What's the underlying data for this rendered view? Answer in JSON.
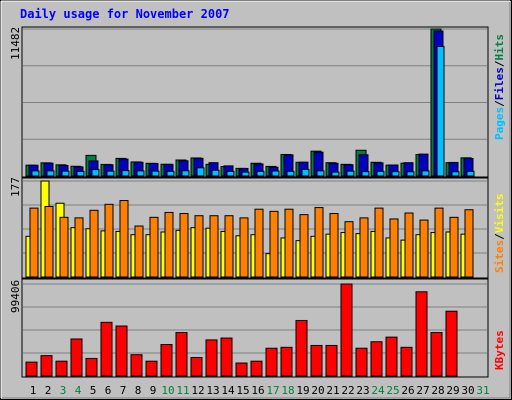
{
  "chart_data": [
    {
      "type": "bar",
      "panel": "top",
      "title": "Daily usage for November 2007",
      "categories": [
        "1",
        "2",
        "3",
        "4",
        "5",
        "6",
        "7",
        "8",
        "9",
        "10",
        "11",
        "12",
        "13",
        "14",
        "15",
        "16",
        "17",
        "18",
        "19",
        "20",
        "21",
        "22",
        "23",
        "24",
        "25",
        "26",
        "27",
        "28",
        "29",
        "30",
        "31"
      ],
      "weekend_days": [
        "3",
        "4",
        "10",
        "11",
        "17",
        "18",
        "24",
        "25",
        "31"
      ],
      "ylabel_parts": [
        "Pages",
        "/",
        "Files",
        "/",
        "Hits"
      ],
      "ylabel_colors": [
        "#00c0ff",
        "#000000",
        "#0000c0",
        "#000000",
        "#008040"
      ],
      "y_max_label": "11482",
      "ylim": [
        0,
        11482
      ],
      "series": [
        {
          "name": "Hits",
          "color": "#008040",
          "values": [
            845,
            1030,
            875,
            760,
            1610,
            905,
            1375,
            1100,
            990,
            915,
            1250,
            1410,
            910,
            740,
            595,
            995,
            750,
            1680,
            1070,
            1940,
            1040,
            910,
            2010,
            1070,
            850,
            1000,
            1680,
            11482,
            1040,
            1420,
            null
          ]
        },
        {
          "name": "Files",
          "color": "#0000c0",
          "values": [
            840,
            1000,
            820,
            710,
            1180,
            880,
            1320,
            1070,
            980,
            910,
            1190,
            1380,
            1040,
            790,
            590,
            940,
            680,
            1650,
            1080,
            1860,
            990,
            880,
            1660,
            1030,
            860,
            1040,
            1710,
            11325,
            1060,
            1370,
            null
          ]
        },
        {
          "name": "Pages",
          "color": "#00c0ff",
          "values": [
            400,
            400,
            380,
            360,
            500,
            380,
            420,
            400,
            380,
            360,
            410,
            640,
            450,
            360,
            300,
            360,
            390,
            360,
            520,
            400,
            300,
            380,
            340,
            360,
            340,
            330,
            400,
            10120,
            330,
            360,
            null
          ]
        }
      ]
    },
    {
      "type": "bar",
      "panel": "middle",
      "ylabel_parts": [
        "Sites",
        "/",
        "Visits"
      ],
      "ylabel_colors": [
        "#ff8000",
        "#000000",
        "#ffff00"
      ],
      "y_max_label": "177",
      "ylim": [
        0,
        177
      ],
      "series": [
        {
          "name": "Visits",
          "color": "#ffff00",
          "values": [
            75,
            177,
            136,
            91,
            89,
            85,
            84,
            78,
            78,
            83,
            86,
            91,
            90,
            84,
            76,
            78,
            43,
            72,
            67,
            75,
            79,
            82,
            80,
            84,
            72,
            68,
            78,
            82,
            83,
            79,
            null
          ]
        },
        {
          "name": "Sites",
          "color": "#ff8000",
          "values": [
            127,
            130,
            110,
            109,
            123,
            134,
            141,
            94,
            110,
            119,
            117,
            113,
            113,
            113,
            109,
            125,
            121,
            125,
            115,
            128,
            117,
            102,
            109,
            127,
            107,
            118,
            105,
            127,
            110,
            124,
            null
          ]
        }
      ]
    },
    {
      "type": "bar",
      "panel": "bottom",
      "ylabel_parts": [
        "KBytes"
      ],
      "ylabel_colors": [
        "#ff0000"
      ],
      "y_max_label": "99406",
      "ylim": [
        0,
        99406
      ],
      "series": [
        {
          "name": "KBytes",
          "color": "#ff0000",
          "values": [
            15000,
            22000,
            16000,
            40000,
            19000,
            58000,
            54000,
            23000,
            16000,
            34000,
            47000,
            20000,
            39000,
            41000,
            14000,
            16000,
            30000,
            31000,
            60000,
            33000,
            33000,
            99406,
            30000,
            37000,
            42000,
            31000,
            91000,
            47000,
            70000,
            null,
            null
          ]
        }
      ]
    }
  ]
}
